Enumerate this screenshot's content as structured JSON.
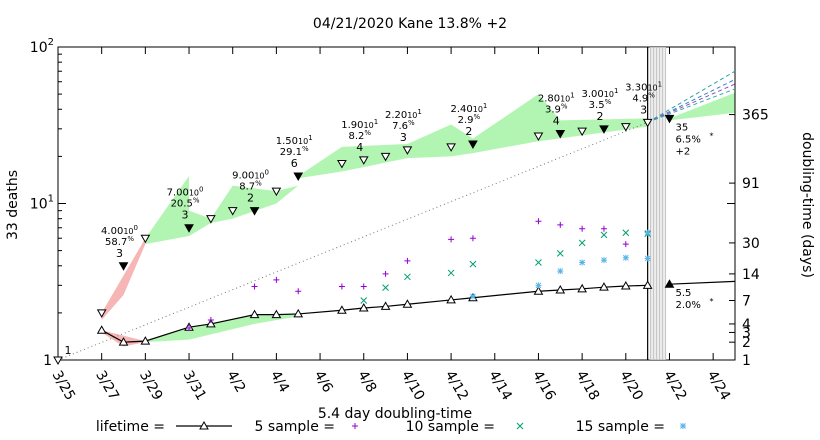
{
  "chart_data": {
    "type": "line",
    "title": "04/21/2020 Kane 13.8% +2",
    "xlabel": "5.4 day doubling-time",
    "ylabel": "33 deaths",
    "y2label": "doubling-time (days)",
    "y_scale": "log",
    "ylim": [
      1,
      100
    ],
    "yticks": [
      {
        "value": 1,
        "label": "1"
      },
      {
        "value": 10,
        "label": "10",
        "sup": "1"
      },
      {
        "value": 100,
        "label": "10",
        "sup": "2"
      }
    ],
    "y2ticks": [
      "1",
      "2",
      "3",
      "4",
      "7",
      "14",
      "30",
      "91",
      "365"
    ],
    "x_dates": [
      "2020-03-25",
      "2020-03-27",
      "2020-03-29",
      "2020-03-31",
      "2020-04-02",
      "2020-04-04",
      "2020-04-06",
      "2020-04-08",
      "2020-04-10",
      "2020-04-12",
      "2020-04-14",
      "2020-04-16",
      "2020-04-18",
      "2020-04-20",
      "2020-04-22",
      "2020-04-24"
    ],
    "x_tick_labels": [
      "3/25",
      "3/27",
      "3/29",
      "3/31",
      "4/2",
      "4/4",
      "4/6",
      "4/8",
      "4/10",
      "4/12",
      "4/14",
      "4/16",
      "4/18",
      "4/20",
      "4/22",
      "4/24"
    ],
    "xlim": [
      "2020-03-25",
      "2020-04-25"
    ],
    "current_date": "2020-04-21",
    "grid": false,
    "legend_position": "bottom",
    "series": [
      {
        "name": "deaths",
        "points": [
          [
            "2020-03-25",
            1
          ],
          [
            "2020-03-27",
            2
          ],
          [
            "2020-03-28",
            4
          ],
          [
            "2020-03-29",
            6
          ],
          [
            "2020-03-31",
            7
          ],
          [
            "2020-04-01",
            8
          ],
          [
            "2020-04-02",
            9
          ],
          [
            "2020-04-03",
            9
          ],
          [
            "2020-04-04",
            12
          ],
          [
            "2020-04-05",
            15
          ],
          [
            "2020-04-07",
            18
          ],
          [
            "2020-04-08",
            19
          ],
          [
            "2020-04-09",
            20
          ],
          [
            "2020-04-10",
            22
          ],
          [
            "2020-04-12",
            23
          ],
          [
            "2020-04-13",
            24
          ],
          [
            "2020-04-16",
            27
          ],
          [
            "2020-04-17",
            28
          ],
          [
            "2020-04-18",
            29
          ],
          [
            "2020-04-19",
            30
          ],
          [
            "2020-04-20",
            31
          ],
          [
            "2020-04-21",
            33
          ],
          [
            "2020-04-22",
            35
          ]
        ],
        "filled_down_dates": [
          "2020-03-28",
          "2020-03-31",
          "2020-04-03",
          "2020-04-05",
          "2020-04-13",
          "2020-04-17",
          "2020-04-19",
          "2020-04-22"
        ]
      },
      {
        "name": "lifetime =",
        "points": [
          [
            "2020-03-27",
            1.55
          ],
          [
            "2020-03-28",
            1.3
          ],
          [
            "2020-03-29",
            1.32
          ],
          [
            "2020-03-31",
            1.62
          ],
          [
            "2020-04-01",
            1.7
          ],
          [
            "2020-04-03",
            1.95
          ],
          [
            "2020-04-04",
            1.95
          ],
          [
            "2020-04-05",
            1.97
          ],
          [
            "2020-04-07",
            2.08
          ],
          [
            "2020-04-08",
            2.15
          ],
          [
            "2020-04-09",
            2.2
          ],
          [
            "2020-04-10",
            2.27
          ],
          [
            "2020-04-12",
            2.42
          ],
          [
            "2020-04-13",
            2.5
          ],
          [
            "2020-04-16",
            2.75
          ],
          [
            "2020-04-17",
            2.8
          ],
          [
            "2020-04-18",
            2.85
          ],
          [
            "2020-04-19",
            2.92
          ],
          [
            "2020-04-20",
            2.97
          ],
          [
            "2020-04-21",
            3.0
          ]
        ],
        "projection": [
          [
            "2020-04-22",
            3.05
          ],
          [
            "2020-04-25",
            3.18
          ]
        ]
      },
      {
        "name": "5 sample =",
        "points": [
          [
            "2020-03-31",
            1.6
          ],
          [
            "2020-04-01",
            1.8
          ],
          [
            "2020-04-03",
            2.95
          ],
          [
            "2020-04-04",
            3.25
          ],
          [
            "2020-04-05",
            2.75
          ],
          [
            "2020-04-07",
            2.95
          ],
          [
            "2020-04-08",
            2.95
          ],
          [
            "2020-04-09",
            3.55
          ],
          [
            "2020-04-10",
            4.3
          ],
          [
            "2020-04-12",
            5.9
          ],
          [
            "2020-04-13",
            6.0
          ],
          [
            "2020-04-16",
            7.7
          ],
          [
            "2020-04-17",
            7.3
          ],
          [
            "2020-04-18",
            6.9
          ],
          [
            "2020-04-19",
            6.9
          ],
          [
            "2020-04-20",
            5.5
          ]
        ]
      },
      {
        "name": "10 sample =",
        "points": [
          [
            "2020-04-08",
            2.4
          ],
          [
            "2020-04-09",
            2.9
          ],
          [
            "2020-04-10",
            3.4
          ],
          [
            "2020-04-12",
            3.6
          ],
          [
            "2020-04-13",
            4.1
          ],
          [
            "2020-04-16",
            4.2
          ],
          [
            "2020-04-17",
            4.8
          ],
          [
            "2020-04-18",
            5.6
          ],
          [
            "2020-04-19",
            6.3
          ],
          [
            "2020-04-20",
            6.5
          ],
          [
            "2020-04-21",
            6.4
          ]
        ]
      },
      {
        "name": "15 sample =",
        "points": [
          [
            "2020-04-13",
            2.55
          ],
          [
            "2020-04-16",
            3.0
          ],
          [
            "2020-04-17",
            3.7
          ],
          [
            "2020-04-18",
            4.2
          ],
          [
            "2020-04-19",
            4.35
          ],
          [
            "2020-04-20",
            4.5
          ],
          [
            "2020-04-21",
            4.45
          ],
          [
            "2020-04-21",
            6.5
          ]
        ]
      }
    ],
    "green_bands": [
      [
        [
          "2020-03-29",
          6
        ],
        [
          "2020-03-31",
          15
        ],
        [
          "2020-03-31",
          9
        ],
        [
          "2020-04-01",
          8
        ],
        [
          "2020-04-02",
          13
        ],
        [
          "2020-04-04",
          12
        ],
        [
          "2020-04-05",
          13
        ]
      ],
      [
        [
          "2020-04-05",
          15
        ],
        [
          "2020-04-07",
          23
        ],
        [
          "2020-04-10",
          24
        ],
        [
          "2020-04-12",
          32
        ],
        [
          "2020-04-13",
          26
        ],
        [
          "2020-04-16",
          50
        ],
        [
          "2020-04-17",
          34
        ],
        [
          "2020-04-21",
          35
        ]
      ],
      [
        [
          "2020-04-22",
          35
        ],
        [
          "2020-04-25",
          51
        ]
      ]
    ],
    "green_band_floors": [
      [
        [
          "2020-03-29",
          5.5
        ],
        [
          "2020-03-31",
          6.2
        ],
        [
          "2020-04-01",
          7.5
        ],
        [
          "2020-04-02",
          8
        ],
        [
          "2020-04-04",
          10
        ],
        [
          "2020-04-05",
          13
        ]
      ],
      [
        [
          "2020-04-05",
          14.5
        ],
        [
          "2020-04-07",
          16
        ],
        [
          "2020-04-10",
          19.5
        ],
        [
          "2020-04-12",
          20
        ],
        [
          "2020-04-13",
          21
        ],
        [
          "2020-04-16",
          25
        ],
        [
          "2020-04-21",
          31
        ]
      ],
      [
        [
          "2020-04-22",
          34
        ],
        [
          "2020-04-25",
          38
        ]
      ]
    ],
    "annotations": [
      {
        "date": "2020-03-25",
        "y": 1,
        "mantissa": "",
        "exp": "",
        "pct": "",
        "rank": "1"
      },
      {
        "date": "2020-03-28",
        "y": 4,
        "mantissa": "4.00",
        "exp": "0",
        "pct": "58.7",
        "rank": "3"
      },
      {
        "date": "2020-03-31",
        "y": 7,
        "mantissa": "7.00",
        "exp": "0",
        "pct": "20.5",
        "rank": "3"
      },
      {
        "date": "2020-04-03",
        "y": 9,
        "mantissa": "9.00",
        "exp": "0",
        "pct": "8.7",
        "rank": "2"
      },
      {
        "date": "2020-04-05",
        "y": 15,
        "mantissa": "1.50",
        "exp": "1",
        "pct": "29.1",
        "rank": "6"
      },
      {
        "date": "2020-04-08",
        "y": 19,
        "mantissa": "1.90",
        "exp": "1",
        "pct": "8.2",
        "rank": "4"
      },
      {
        "date": "2020-04-10",
        "y": 22,
        "mantissa": "2.20",
        "exp": "1",
        "pct": "7.6",
        "rank": "3"
      },
      {
        "date": "2020-04-13",
        "y": 24,
        "mantissa": "2.40",
        "exp": "1",
        "pct": "2.9",
        "rank": "2"
      },
      {
        "date": "2020-04-17",
        "y": 28,
        "mantissa": "2.80",
        "exp": "1",
        "pct": "3.9",
        "rank": "4"
      },
      {
        "date": "2020-04-19",
        "y": 30,
        "mantissa": "3.00",
        "exp": "1",
        "pct": "3.5",
        "rank": "2"
      },
      {
        "date": "2020-04-21",
        "y": 33,
        "mantissa": "3.30",
        "exp": "1",
        "pct": "4.9",
        "rank": "3"
      }
    ],
    "right_note_deaths": {
      "value": "35",
      "pct": "6.5%",
      "star": "*",
      "delta": "+2"
    },
    "right_note_lifetime": {
      "value": "5.5",
      "pct": "2.0%",
      "star": "*"
    },
    "projection_colors": [
      "#2ca0a0",
      "#3a7fd0",
      "#9050c0",
      "#2fb0a0"
    ],
    "colors": {
      "deaths": "#000000",
      "lifetime": "#000000",
      "sample5": "#9400d3",
      "sample10": "#009e73",
      "sample15": "#56b4e9",
      "green_band": "#b2f5b2",
      "red_band": "#f7b6b6"
    }
  }
}
